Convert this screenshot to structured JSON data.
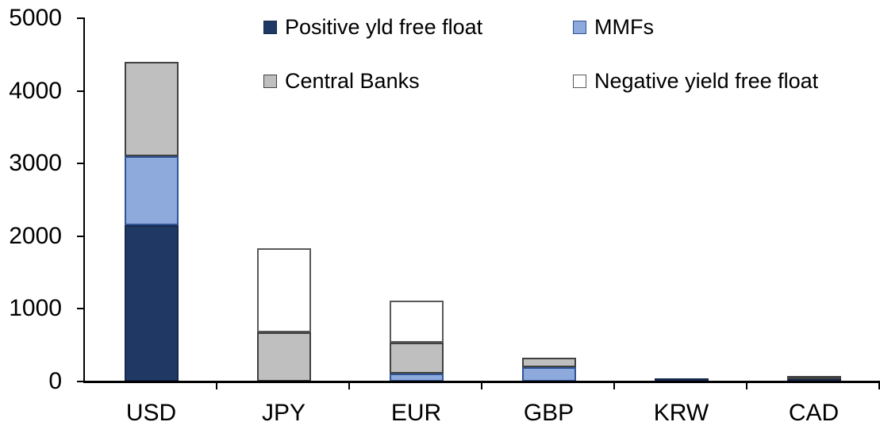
{
  "chart_data": {
    "type": "stacked-bar",
    "title": "",
    "xlabel": "",
    "ylabel": "",
    "categories": [
      "USD",
      "JPY",
      "EUR",
      "GBP",
      "KRW",
      "CAD"
    ],
    "series": [
      {
        "name": "Positive yld free float",
        "fill": "#1F3864",
        "border": "#16294C",
        "values": [
          2150,
          0,
          0,
          0,
          40,
          35
        ]
      },
      {
        "name": "MMFs",
        "fill": "#8EA9DB",
        "border": "#2F5597",
        "values": [
          950,
          0,
          110,
          200,
          0,
          0
        ]
      },
      {
        "name": "Central Banks",
        "fill": "#BFBFBF",
        "border": "#404040",
        "values": [
          1300,
          680,
          430,
          130,
          0,
          45
        ]
      },
      {
        "name": "Negative yield free float",
        "fill": "#FFFFFF",
        "border": "#595959",
        "values": [
          0,
          1150,
          570,
          0,
          0,
          0
        ]
      }
    ],
    "stack_order": "bottom-to-top as listed",
    "totals": [
      4400,
      1830,
      1110,
      330,
      40,
      80
    ],
    "ylim": [
      0,
      5000
    ],
    "yticks": [
      0,
      1000,
      2000,
      3000,
      4000,
      5000
    ],
    "grid": false,
    "legend_position": "top",
    "legend_rows": [
      [
        "Positive yld free float",
        "MMFs"
      ],
      [
        "Central Banks",
        "Negative yield free float"
      ]
    ],
    "colors": {
      "axis": "#000000",
      "text": "#000000",
      "background": "#FFFFFF"
    }
  }
}
